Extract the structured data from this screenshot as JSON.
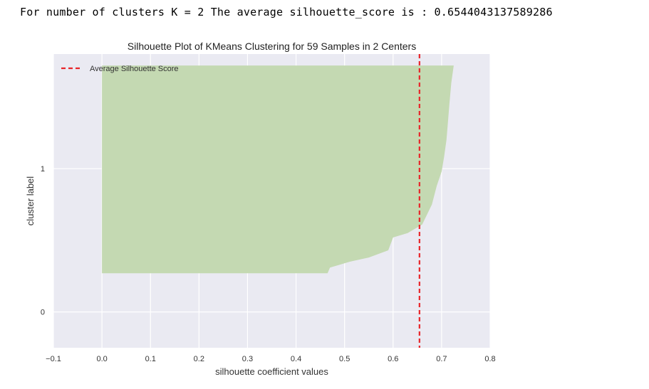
{
  "output_line": "For number of clusters K = 2 The average silhouette_score is : 0.6544043137589286",
  "chart_data": {
    "type": "area",
    "title": "Silhouette Plot of KMeans Clustering for 59 Samples in 2 Centers",
    "xlabel": "silhouette coefficient values",
    "ylabel": "cluster label",
    "xlim": [
      -0.1,
      0.8
    ],
    "ylim": [
      -0.25,
      1.8
    ],
    "x_ticks": [
      "−0.1",
      "0.0",
      "0.1",
      "0.2",
      "0.3",
      "0.4",
      "0.5",
      "0.6",
      "0.7",
      "0.8"
    ],
    "x_tick_values": [
      -0.1,
      0.0,
      0.1,
      0.2,
      0.3,
      0.4,
      0.5,
      0.6,
      0.7,
      0.8
    ],
    "y_ticks": [
      "0",
      "1"
    ],
    "y_tick_values": [
      0,
      1
    ],
    "grid": true,
    "legend_position": "top-left",
    "average_silhouette_score": 0.6544,
    "average_line_color": "#e8262a",
    "legend_label": "Average Silhouette Score",
    "cluster_color": "#c4d9b2",
    "background_color": "#eaeaf2",
    "clusters": [
      {
        "label": "1",
        "y_range": [
          0.27,
          1.72
        ],
        "silhouette_values_sorted": [
          0.465,
          0.47,
          0.49,
          0.51,
          0.55,
          0.59,
          0.6,
          0.63,
          0.66,
          0.68,
          0.69,
          0.7,
          0.705,
          0.71,
          0.713,
          0.716,
          0.72,
          0.725
        ],
        "profile_y": [
          0.27,
          0.31,
          0.33,
          0.35,
          0.38,
          0.43,
          0.52,
          0.55,
          0.61,
          0.75,
          0.88,
          0.98,
          1.08,
          1.2,
          1.32,
          1.45,
          1.6,
          1.72
        ]
      }
    ]
  }
}
